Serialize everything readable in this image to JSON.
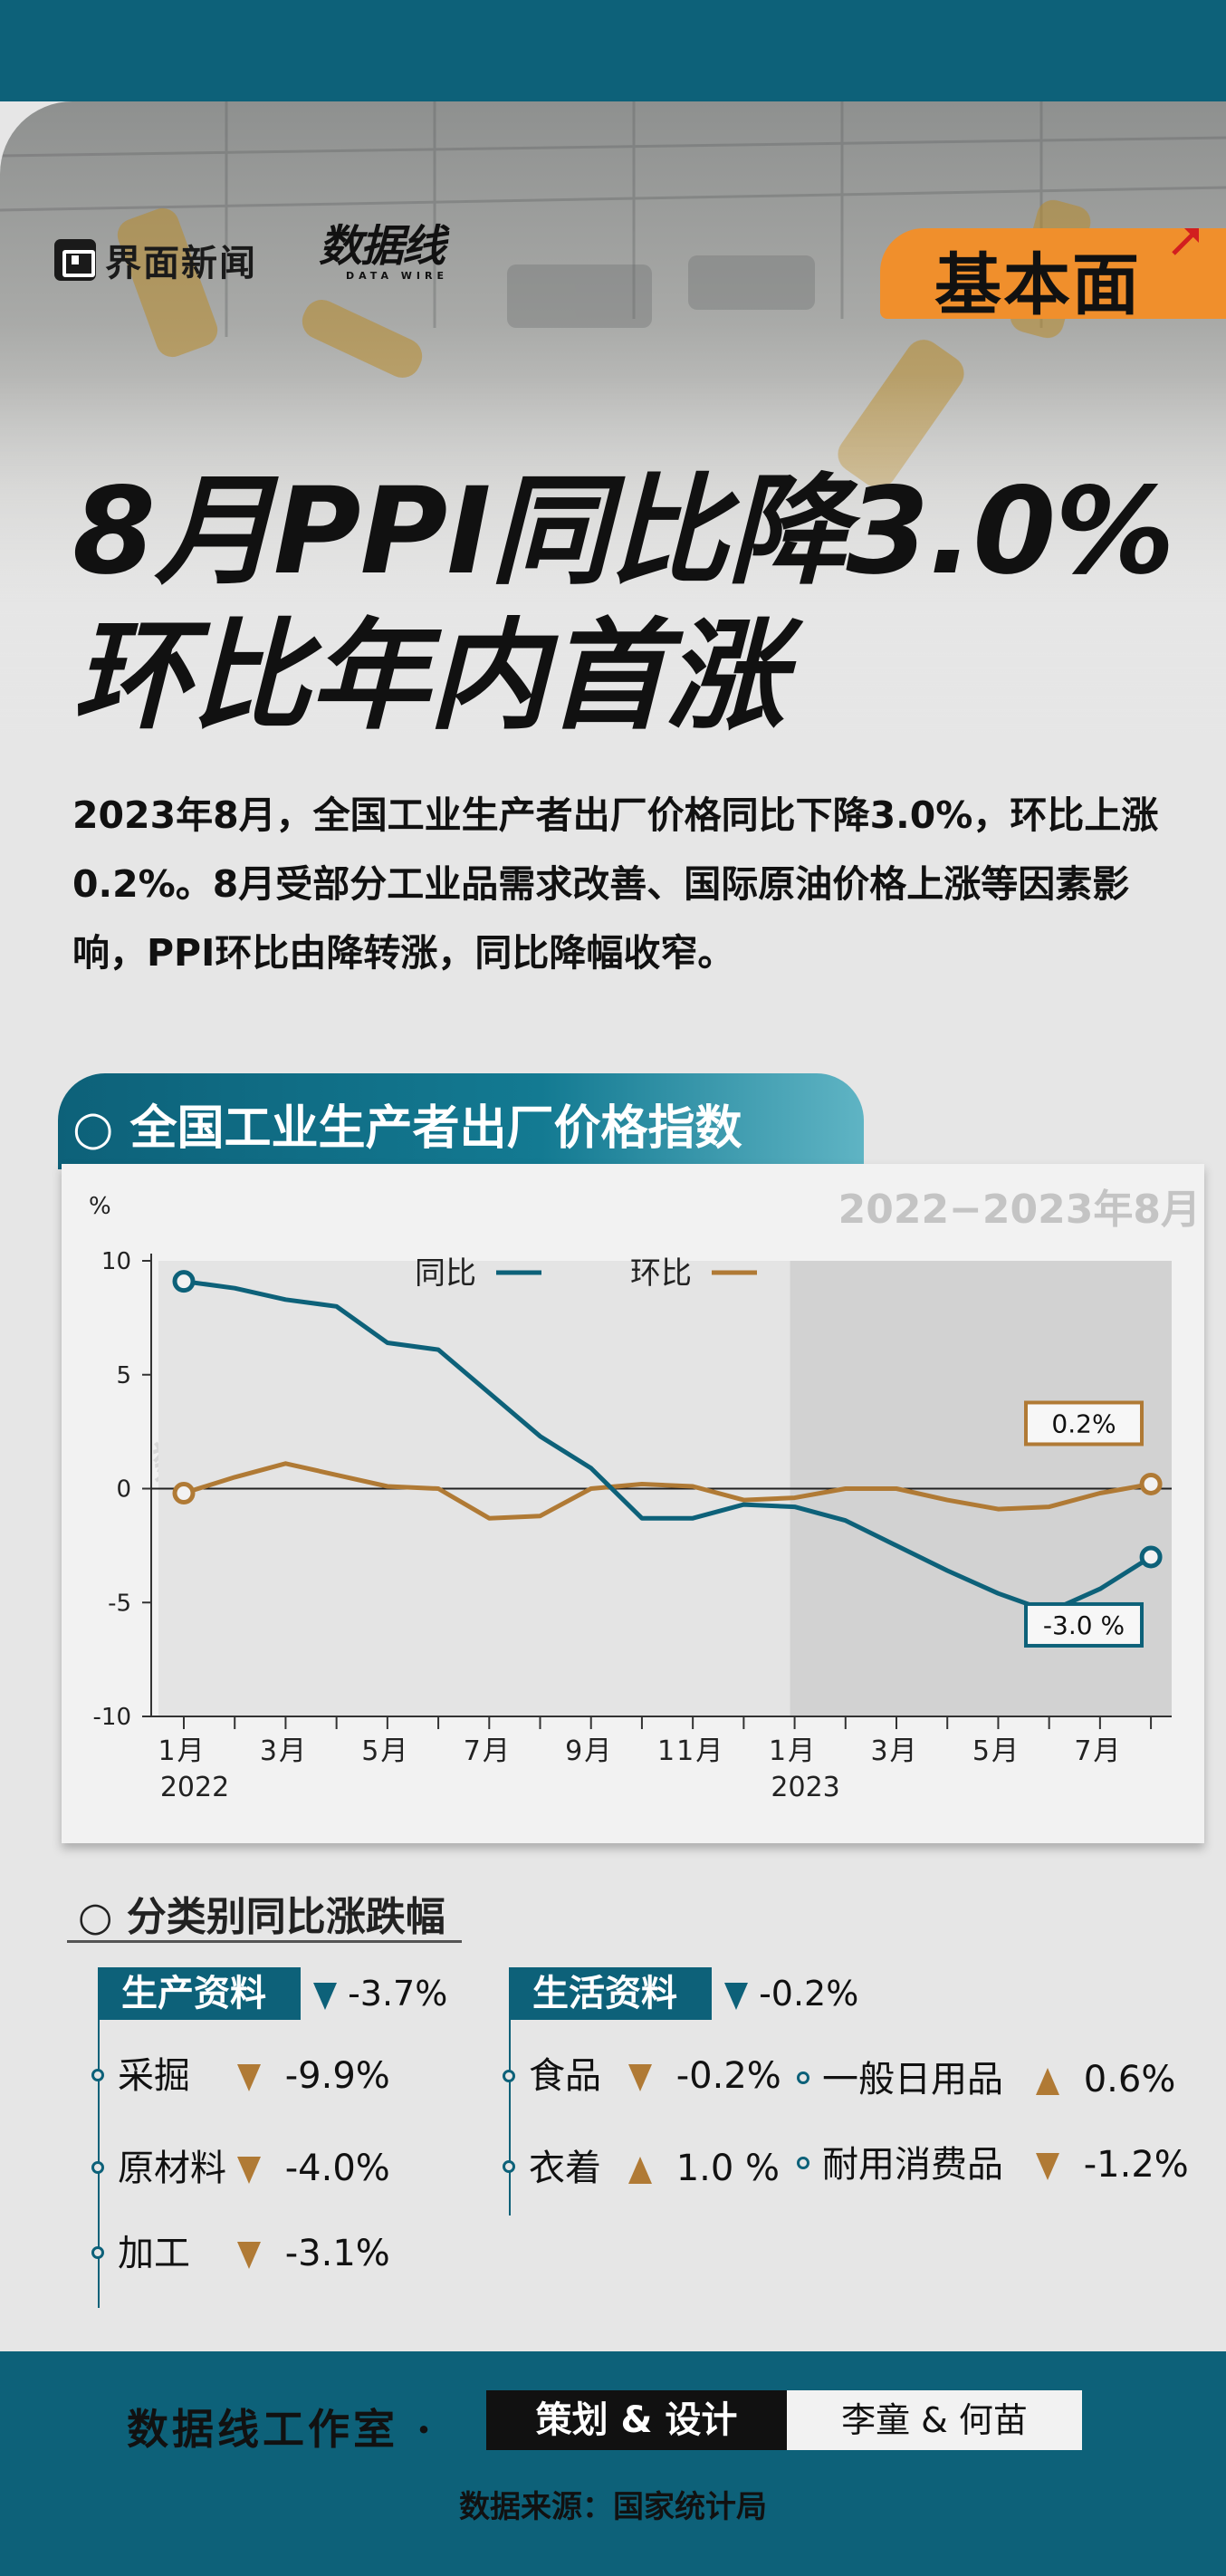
{
  "header": {
    "brand_1": "界面新闻",
    "brand_2": "数据线",
    "brand_2_sub": "DATA WIRE",
    "badge": "基本面"
  },
  "headline": {
    "line1": "8月PPI同比降3.0%",
    "line2": "环比年内首涨"
  },
  "intro": " 2023年8月，全国工业生产者出厂价格同比下降3.0%，环比上涨0.2%。8月受部分工业品需求改善、国际原油价格上涨等因素影响，PPI环比由降转涨，同比降幅收窄。",
  "section_title": "○ 全国工业生产者出厂价格指数",
  "chart_data": {
    "type": "line",
    "date_range": "2022−2023年8月",
    "ylabel": "%",
    "ylim": [
      -10,
      10
    ],
    "yticks": [
      10,
      5,
      0,
      -5,
      -10
    ],
    "x": [
      "2022-01",
      "2022-02",
      "2022-03",
      "2022-04",
      "2022-05",
      "2022-06",
      "2022-07",
      "2022-08",
      "2022-09",
      "2022-10",
      "2022-11",
      "2022-12",
      "2023-01",
      "2023-02",
      "2023-03",
      "2023-04",
      "2023-05",
      "2023-06",
      "2023-07",
      "2023-08"
    ],
    "tick_labels": [
      {
        "idx": 0,
        "label": "1月",
        "year": "2022"
      },
      {
        "idx": 2,
        "label": "3月"
      },
      {
        "idx": 4,
        "label": "5月"
      },
      {
        "idx": 6,
        "label": "7月"
      },
      {
        "idx": 8,
        "label": "9月"
      },
      {
        "idx": 10,
        "label": "11月"
      },
      {
        "idx": 12,
        "label": "1月",
        "year": "2023"
      },
      {
        "idx": 14,
        "label": "3月"
      },
      {
        "idx": 16,
        "label": "5月"
      },
      {
        "idx": 18,
        "label": "7月"
      }
    ],
    "series": [
      {
        "name": "同比",
        "color": "#0d6179",
        "values": [
          9.1,
          8.8,
          8.3,
          8.0,
          6.4,
          6.1,
          4.2,
          2.3,
          0.9,
          -1.3,
          -1.3,
          -0.7,
          -0.8,
          -1.4,
          -2.5,
          -3.6,
          -4.6,
          -5.4,
          -4.4,
          -3.0
        ]
      },
      {
        "name": "环比",
        "color": "#b07a35",
        "values": [
          -0.2,
          0.5,
          1.1,
          0.6,
          0.1,
          0.0,
          -1.3,
          -1.2,
          0.0,
          0.2,
          0.1,
          -0.5,
          -0.4,
          0.0,
          0.0,
          -0.5,
          -0.9,
          -0.8,
          -0.2,
          0.2
        ]
      }
    ],
    "shaded_from": "2023-01",
    "annotations": [
      {
        "series": "环比",
        "label": "0.2%"
      },
      {
        "series": "同比",
        "label": "-3.0 %"
      }
    ]
  },
  "categories": {
    "title": "○ 分类别同比涨跌幅",
    "production": {
      "label": "生产资料",
      "value": "-3.7%",
      "items": [
        {
          "name": "采掘",
          "value": "-9.9%",
          "dir": "down"
        },
        {
          "name": "原材料",
          "value": "-4.0%",
          "dir": "down"
        },
        {
          "name": "加工",
          "value": "-3.1%",
          "dir": "down"
        }
      ]
    },
    "living": {
      "label": "生活资料",
      "value": "-0.2%",
      "items": [
        {
          "name": "食品",
          "value": "-0.2%",
          "dir": "down"
        },
        {
          "name": "衣着",
          "value": "1.0 %",
          "dir": "up"
        },
        {
          "name": "一般日用品",
          "value": "0.6%",
          "dir": "up"
        },
        {
          "name": "耐用消费品",
          "value": "-1.2%",
          "dir": "down"
        }
      ]
    }
  },
  "footer": {
    "studio": "数据线工作室 ·",
    "credit_role": "策划 & 设计",
    "credit_names": "李童 & 何苗",
    "source": "数据来源：国家统计局"
  }
}
